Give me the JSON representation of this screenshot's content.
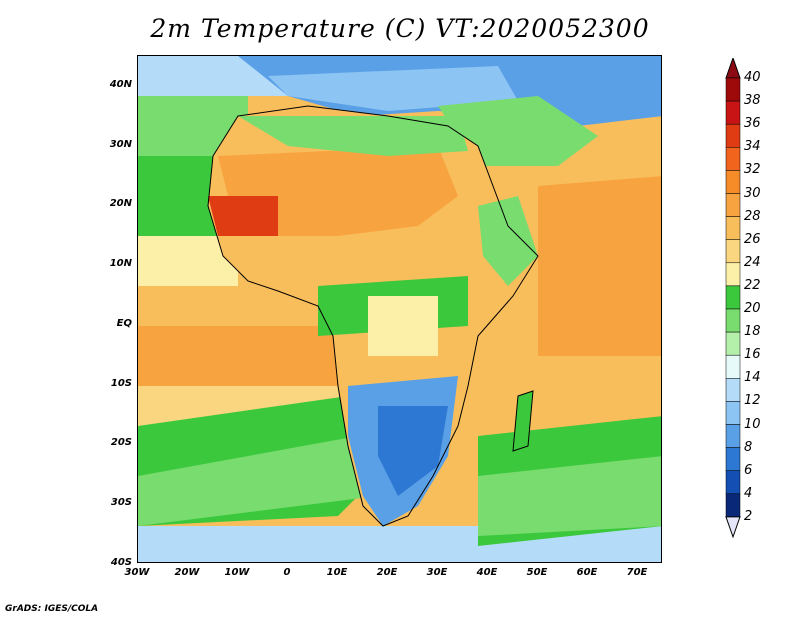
{
  "title": "2m Temperature (C) VT:2020052300",
  "map": {
    "extent": {
      "lon": [
        -30,
        75
      ],
      "lat": [
        -40,
        45
      ]
    },
    "lat_ticks": [
      {
        "value": 40,
        "label": "40N"
      },
      {
        "value": 30,
        "label": "30N"
      },
      {
        "value": 20,
        "label": "20N"
      },
      {
        "value": 10,
        "label": "10N"
      },
      {
        "value": 0,
        "label": "EQ"
      },
      {
        "value": -10,
        "label": "10S"
      },
      {
        "value": -20,
        "label": "20S"
      },
      {
        "value": -30,
        "label": "30S"
      },
      {
        "value": -40,
        "label": "40S"
      }
    ],
    "lon_ticks": [
      {
        "value": -30,
        "label": "30W"
      },
      {
        "value": -20,
        "label": "20W"
      },
      {
        "value": -10,
        "label": "10W"
      },
      {
        "value": 0,
        "label": "0"
      },
      {
        "value": 10,
        "label": "10E"
      },
      {
        "value": 20,
        "label": "20E"
      },
      {
        "value": 30,
        "label": "30E"
      },
      {
        "value": 40,
        "label": "40E"
      },
      {
        "value": 50,
        "label": "50E"
      },
      {
        "value": 60,
        "label": "60E"
      },
      {
        "value": 70,
        "label": "70E"
      }
    ]
  },
  "colorbar": {
    "levels": [
      "40",
      "38",
      "36",
      "34",
      "32",
      "30",
      "28",
      "26",
      "24",
      "22",
      "20",
      "18",
      "16",
      "14",
      "12",
      "10",
      "8",
      "6",
      "4",
      "2"
    ],
    "colors": [
      "#9e0a0a",
      "#c81414",
      "#e03c14",
      "#f0641e",
      "#f58c28",
      "#f7a440",
      "#f9be5c",
      "#fbd680",
      "#fcf0a8",
      "#3cc83c",
      "#78dc6e",
      "#b4f0aa",
      "#e6fafa",
      "#b4dcf8",
      "#8cc4f4",
      "#5aa0e6",
      "#2d78d2",
      "#1450b4",
      "#0a2878"
    ],
    "top_triangle_color": "#8c0a14",
    "bottom_triangle_color": "#e6e6fa"
  },
  "credit": "GrADS: IGES/COLA"
}
